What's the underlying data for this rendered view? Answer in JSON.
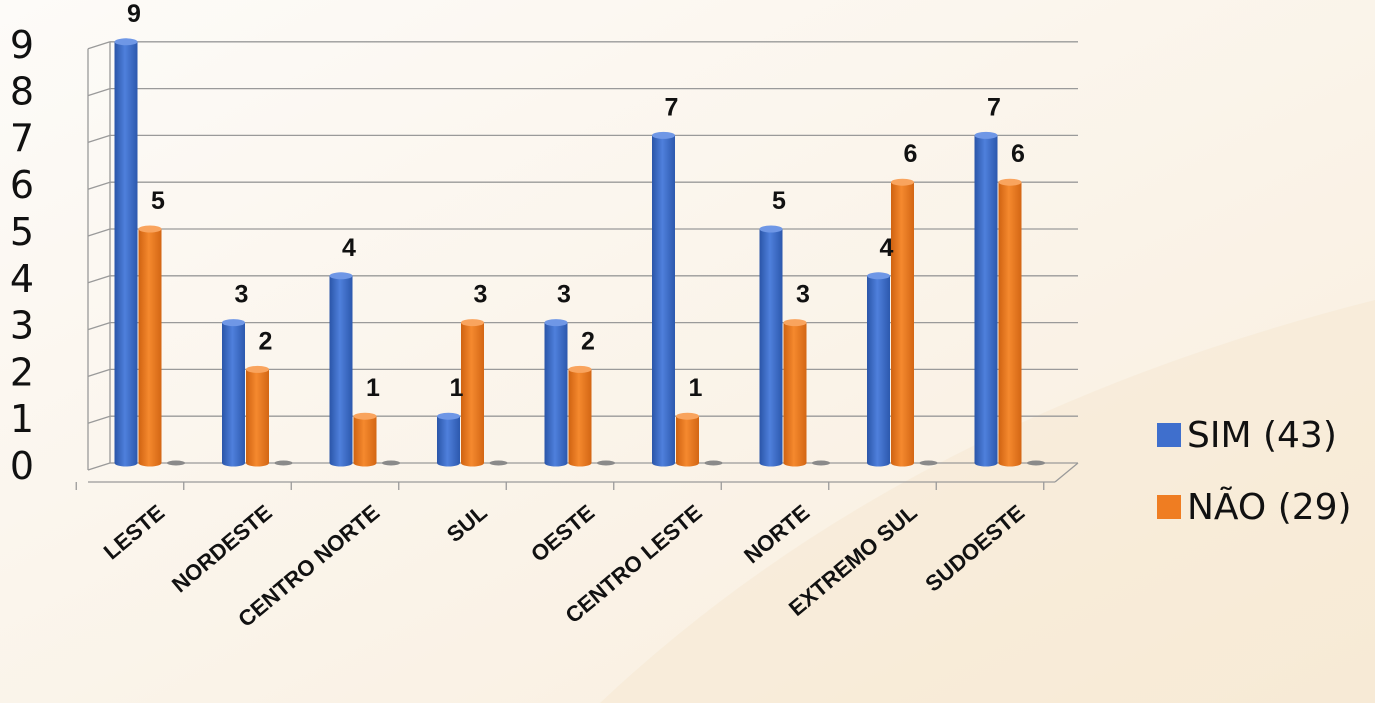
{
  "chart_data": {
    "type": "bar",
    "categories": [
      "LESTE",
      "NORDESTE",
      "CENTRO NORTE",
      "SUL",
      "OESTE",
      "CENTRO LESTE",
      "NORTE",
      "EXTREMO SUL",
      "SUDOESTE"
    ],
    "series": [
      {
        "name": "SIM (43)",
        "values": [
          9,
          3,
          4,
          1,
          3,
          7,
          5,
          4,
          7
        ],
        "color": "#3f6fcd"
      },
      {
        "name": "NÃO (29)",
        "values": [
          5,
          2,
          1,
          3,
          2,
          1,
          3,
          6,
          6
        ],
        "color": "#ef7d22"
      }
    ],
    "ylim": [
      0,
      9
    ],
    "yticks": [
      "0",
      "1",
      "2",
      "3",
      "4",
      "5",
      "6",
      "7",
      "8",
      "9"
    ],
    "grid": true,
    "legend_position": "right",
    "data_labels": true,
    "style": "3d-cylinder"
  }
}
